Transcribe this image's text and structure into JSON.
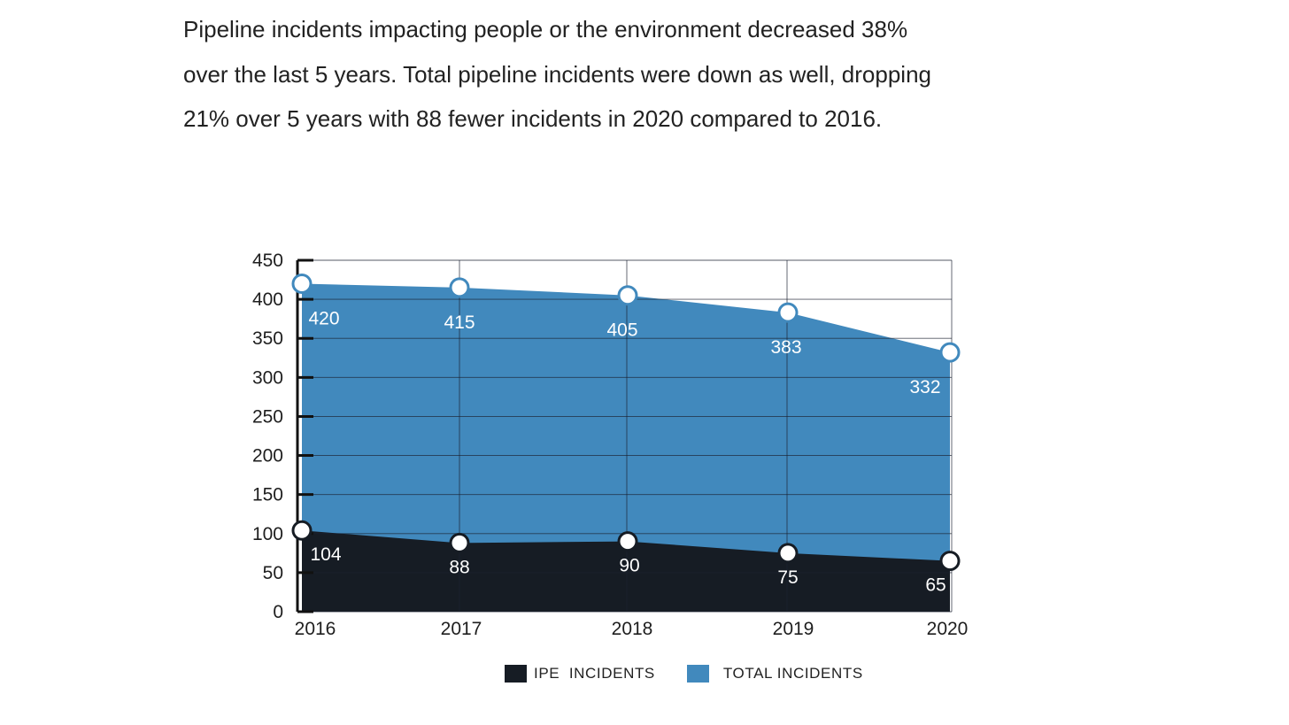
{
  "intro": {
    "lines": [
      "Pipeline incidents impacting people or the environment decreased 38%",
      "over the last 5 years. Total pipeline incidents were down as well, dropping",
      "21% over 5 years with 88 fewer incidents in 2020 compared to 2016."
    ]
  },
  "colors": {
    "total": "#4189bd",
    "ipe": "#161c24",
    "grid": "#1b2230",
    "marker_outline_total": "#4189bd",
    "marker_outline_ipe": "#161c24"
  },
  "chart_data": {
    "type": "area",
    "categories": [
      "2016",
      "2017",
      "2018",
      "2019",
      "2020"
    ],
    "series": [
      {
        "name": "TOTAL INCIDENTS",
        "values": [
          420,
          415,
          405,
          383,
          332
        ]
      },
      {
        "name": "IPE INCIDENTS",
        "values": [
          104,
          88,
          90,
          75,
          65
        ]
      }
    ],
    "data_labels": {
      "TOTAL INCIDENTS": [
        "420",
        "415",
        "405",
        "383",
        "332"
      ],
      "IPE INCIDENTS": [
        "104",
        "88",
        "90",
        "75",
        "65"
      ]
    },
    "yticks": [
      "450",
      "400",
      "350",
      "300",
      "250",
      "200",
      "150",
      "100",
      "50",
      "0"
    ],
    "ylim": [
      0,
      450
    ],
    "grid": true,
    "legend": {
      "placement": "bottom",
      "items": [
        {
          "label": "IPE  INCIDENTS",
          "color": "#161c24"
        },
        {
          "label": "TOTAL INCIDENTS",
          "color": "#4189bd"
        }
      ]
    }
  }
}
